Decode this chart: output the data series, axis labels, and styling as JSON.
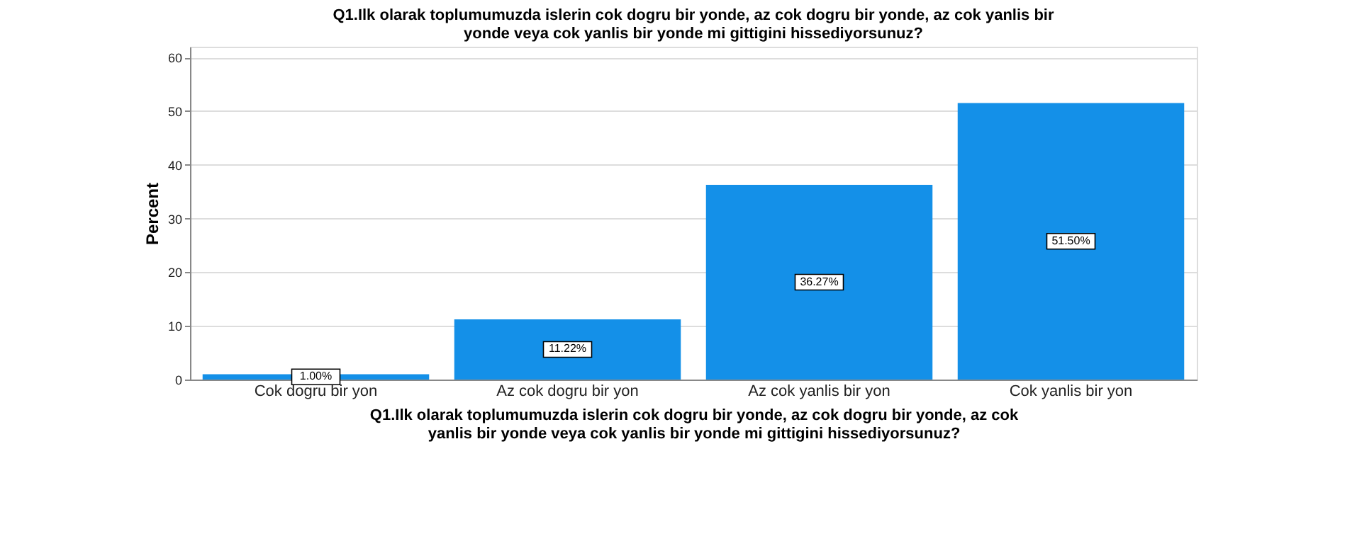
{
  "chart_data": {
    "type": "bar",
    "title": "Q1.Ilk olarak toplumumuzda islerin cok dogru bir yonde, az cok dogru bir yonde, az cok yanlis bir yonde veya cok yanlis bir yonde mi gittigini hissediyorsunuz?",
    "xlabel": "Q1.Ilk olarak toplumumuzda islerin cok dogru bir yonde, az cok dogru bir yonde, az cok yanlis bir yonde veya cok yanlis bir yonde mi gittigini hissediyorsunuz?",
    "ylabel": "Percent",
    "categories": [
      "Cok dogru bir yon",
      "Az cok dogru bir yon",
      "Az cok yanlis bir yon",
      "Cok yanlis bir yon"
    ],
    "values": [
      1.0,
      11.22,
      36.27,
      51.5
    ],
    "value_labels": [
      "1.00%",
      "11.22%",
      "36.27%",
      "51.50%"
    ],
    "color": "#1490e8",
    "ylim": [
      0,
      62
    ],
    "yticks": [
      0,
      10,
      20,
      30,
      40,
      50,
      60
    ],
    "grid": "y"
  }
}
